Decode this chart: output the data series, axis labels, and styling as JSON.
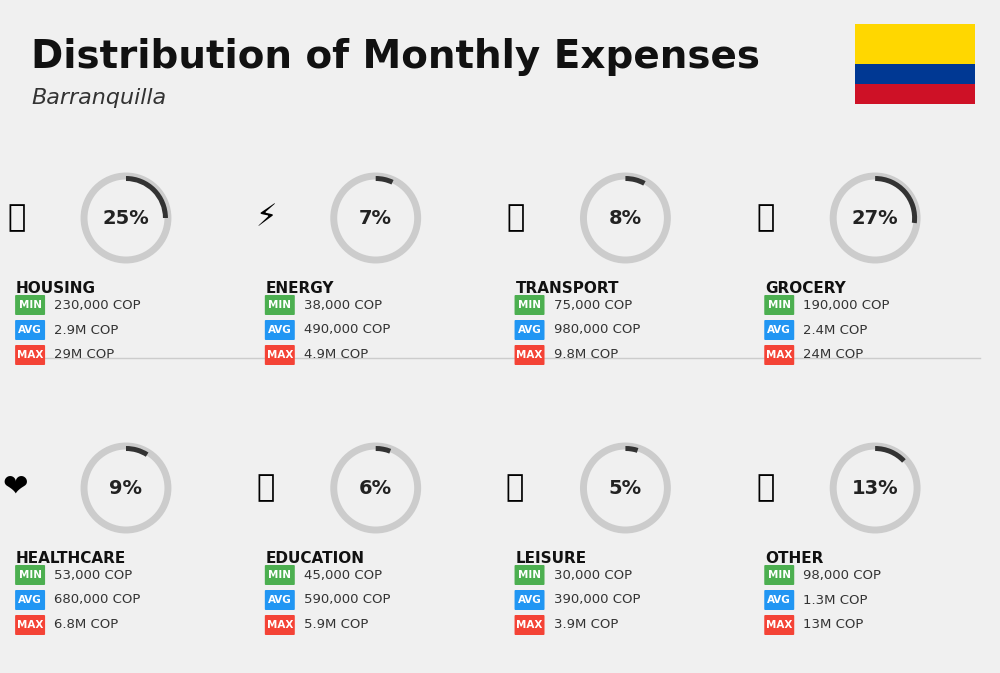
{
  "title": "Distribution of Monthly Expenses",
  "subtitle": "Barranquilla",
  "background_color": "#f0f0f0",
  "categories": [
    {
      "name": "HOUSING",
      "percent": 25,
      "min": "230,000 COP",
      "avg": "2.9M COP",
      "max": "29M COP",
      "col": 0,
      "row": 0
    },
    {
      "name": "ENERGY",
      "percent": 7,
      "min": "38,000 COP",
      "avg": "490,000 COP",
      "max": "4.9M COP",
      "col": 1,
      "row": 0
    },
    {
      "name": "TRANSPORT",
      "percent": 8,
      "min": "75,000 COP",
      "avg": "980,000 COP",
      "max": "9.8M COP",
      "col": 2,
      "row": 0
    },
    {
      "name": "GROCERY",
      "percent": 27,
      "min": "190,000 COP",
      "avg": "2.4M COP",
      "max": "24M COP",
      "col": 3,
      "row": 0
    },
    {
      "name": "HEALTHCARE",
      "percent": 9,
      "min": "53,000 COP",
      "avg": "680,000 COP",
      "max": "6.8M COP",
      "col": 0,
      "row": 1
    },
    {
      "name": "EDUCATION",
      "percent": 6,
      "min": "45,000 COP",
      "avg": "590,000 COP",
      "max": "5.9M COP",
      "col": 1,
      "row": 1
    },
    {
      "name": "LEISURE",
      "percent": 5,
      "min": "30,000 COP",
      "avg": "390,000 COP",
      "max": "3.9M COP",
      "col": 2,
      "row": 1
    },
    {
      "name": "OTHER",
      "percent": 13,
      "min": "98,000 COP",
      "avg": "1.3M COP",
      "max": "13M COP",
      "col": 3,
      "row": 1
    }
  ],
  "color_min": "#4CAF50",
  "color_avg": "#2196F3",
  "color_max": "#F44336",
  "donut_color": "#333333",
  "donut_bg": "#cccccc",
  "flag_colors": [
    "#FFD700",
    "#003893",
    "#CE1126"
  ],
  "title_fontsize": 28,
  "subtitle_fontsize": 16,
  "category_fontsize": 11,
  "value_fontsize": 9.5,
  "percent_fontsize": 14
}
